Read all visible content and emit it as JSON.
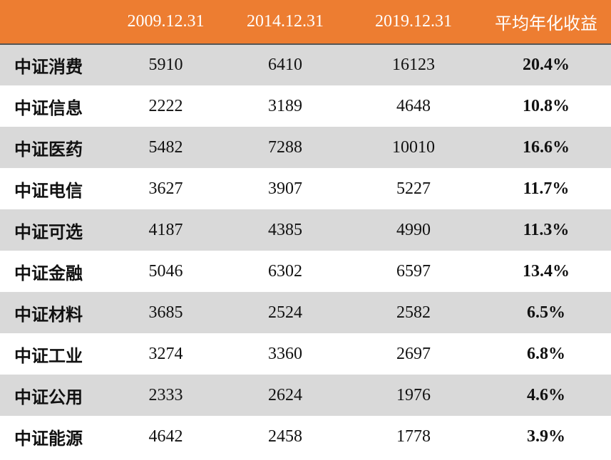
{
  "table": {
    "header": [
      "2009.12.31",
      "2014.12.31",
      "2019.12.31",
      "平均年化收益"
    ],
    "rows": [
      [
        "中证消费",
        5910,
        6410,
        16123,
        "20.4%"
      ],
      [
        "中证信息",
        2222,
        3189,
        4648,
        "10.8%"
      ],
      [
        "中证医药",
        5482,
        7288,
        10010,
        "16.6%"
      ],
      [
        "中证电信",
        3627,
        3907,
        5227,
        "11.7%"
      ],
      [
        "中证可选",
        4187,
        4385,
        4990,
        "11.3%"
      ],
      [
        "中证金融",
        5046,
        6302,
        6597,
        "13.4%"
      ],
      [
        "中证材料",
        3685,
        2524,
        2582,
        "6.5%"
      ],
      [
        "中证工业",
        3274,
        3360,
        2697,
        "6.8%"
      ],
      [
        "中证公用",
        2333,
        2624,
        1976,
        "4.6%"
      ],
      [
        "中证能源",
        4642,
        2458,
        1778,
        "3.9%"
      ]
    ]
  }
}
